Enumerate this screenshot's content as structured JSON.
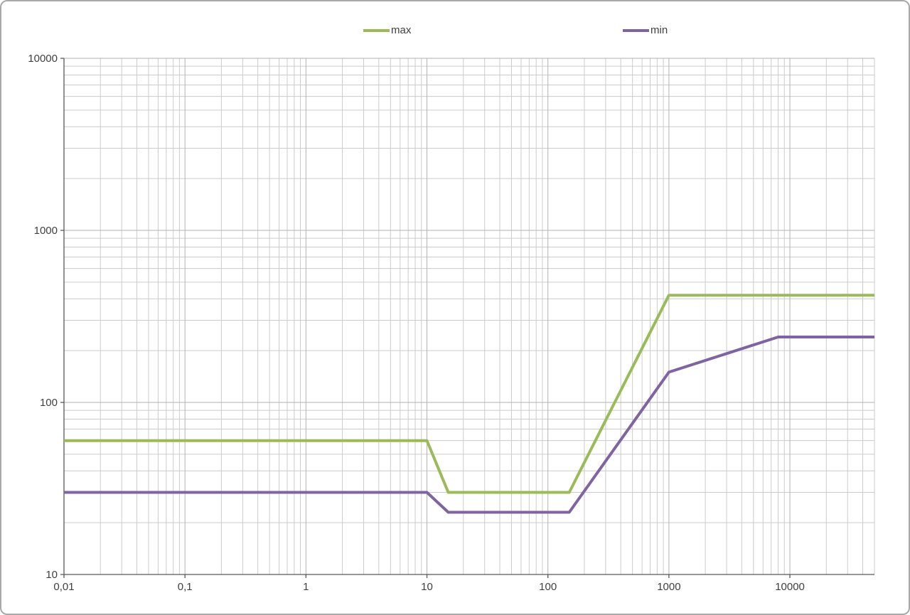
{
  "chart_data": {
    "type": "line",
    "title": "",
    "xlabel": "",
    "ylabel": "",
    "x_scale": "log",
    "y_scale": "log",
    "xlim": [
      0.01,
      50000
    ],
    "ylim": [
      10,
      10000
    ],
    "x_tick_values": [
      0.01,
      0.1,
      1,
      10,
      100,
      1000,
      10000
    ],
    "x_tick_labels": [
      "0,01",
      "0,1",
      "1",
      "10",
      "100",
      "1000",
      "10000"
    ],
    "y_tick_values": [
      10,
      100,
      1000,
      10000
    ],
    "y_tick_labels": [
      "10",
      "100",
      "1000",
      "10000"
    ],
    "grid": "major and minor logarithmic gridlines on both axes",
    "legend_position": "top",
    "series": [
      {
        "name": "max",
        "color": "#9bbb59",
        "points": [
          [
            0.01,
            60
          ],
          [
            10,
            60
          ],
          [
            15,
            30
          ],
          [
            150,
            30
          ],
          [
            1000,
            420
          ],
          [
            50000,
            420
          ]
        ]
      },
      {
        "name": "min",
        "color": "#8064a2",
        "points": [
          [
            0.01,
            30
          ],
          [
            10,
            30
          ],
          [
            15,
            23
          ],
          [
            150,
            23
          ],
          [
            1000,
            150
          ],
          [
            8000,
            240
          ],
          [
            50000,
            240
          ]
        ]
      }
    ],
    "colors": {
      "grid_minor": "#cccccc",
      "grid_major": "#b3b3b3",
      "axis": "#595959",
      "tick_text": "#404040"
    }
  }
}
